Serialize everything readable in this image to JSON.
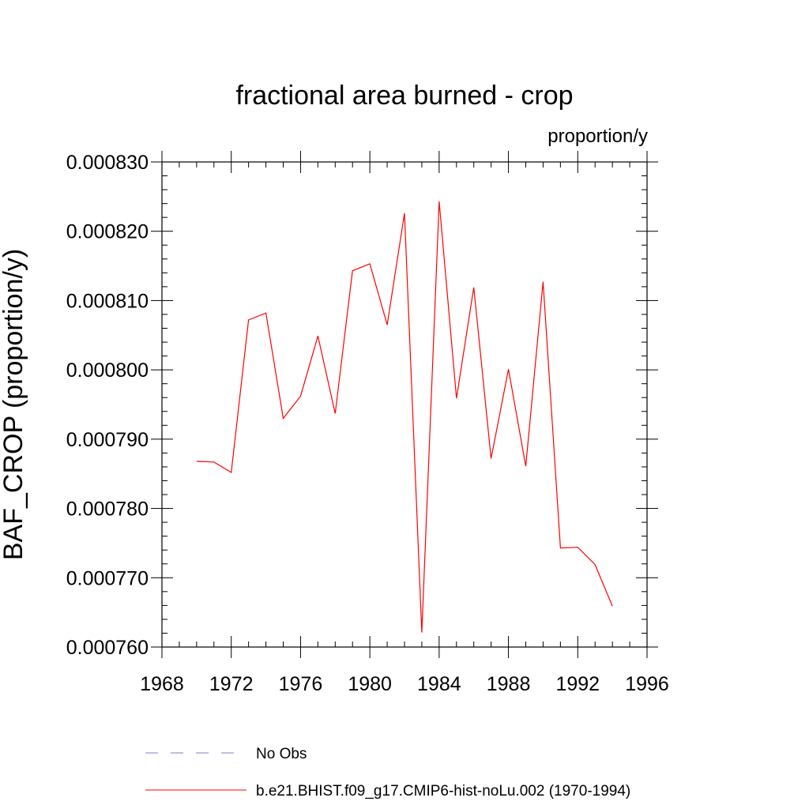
{
  "chart_data": {
    "type": "line",
    "title": "fractional area burned - crop",
    "units": "proportion/y",
    "ylabel": "BAF_CROP  (proportion/y)",
    "xlabel": "",
    "xlim": [
      1968,
      1996
    ],
    "ylim": [
      0.00076,
      0.00083
    ],
    "x_ticks": [
      1968,
      1972,
      1976,
      1980,
      1984,
      1988,
      1992,
      1996
    ],
    "x_tick_labels": [
      "1968",
      "1972",
      "1976",
      "1980",
      "1984",
      "1988",
      "1992",
      "1996"
    ],
    "y_ticks": [
      0.00076,
      0.00077,
      0.00078,
      0.00079,
      0.0008,
      0.00081,
      0.00082,
      0.00083
    ],
    "y_tick_labels": [
      "0.000760",
      "0.000770",
      "0.000780",
      "0.000790",
      "0.000800",
      "0.000810",
      "0.000820",
      "0.000830"
    ],
    "grid": false,
    "legend_position": "bottom",
    "series": [
      {
        "name": "b.e21.BHIST.f09_g17.CMIP6-hist-noLu.002 (1970-1994)",
        "color": "#ff0000",
        "style": "solid",
        "x": [
          1970,
          1971,
          1972,
          1973,
          1974,
          1975,
          1976,
          1977,
          1978,
          1979,
          1980,
          1981,
          1982,
          1983,
          1984,
          1985,
          1986,
          1987,
          1988,
          1989,
          1990,
          1991,
          1992,
          1993,
          1994
        ],
        "y": [
          0.0007868,
          0.0007867,
          0.0007852,
          0.0008072,
          0.0008082,
          0.000793,
          0.0007962,
          0.0008049,
          0.0007937,
          0.0008143,
          0.0008153,
          0.0008065,
          0.0008226,
          0.0007621,
          0.0008243,
          0.0007959,
          0.0008119,
          0.0007872,
          0.0008001,
          0.0007861,
          0.0008127,
          0.0007743,
          0.0007744,
          0.0007719,
          0.0007659
        ]
      }
    ],
    "legend": [
      {
        "label": "No Obs",
        "color": "#7f7fcf",
        "style": "dashed"
      },
      {
        "label": "b.e21.BHIST.f09_g17.CMIP6-hist-noLu.002 (1970-1994)",
        "color": "#ff0000",
        "style": "solid"
      }
    ]
  }
}
